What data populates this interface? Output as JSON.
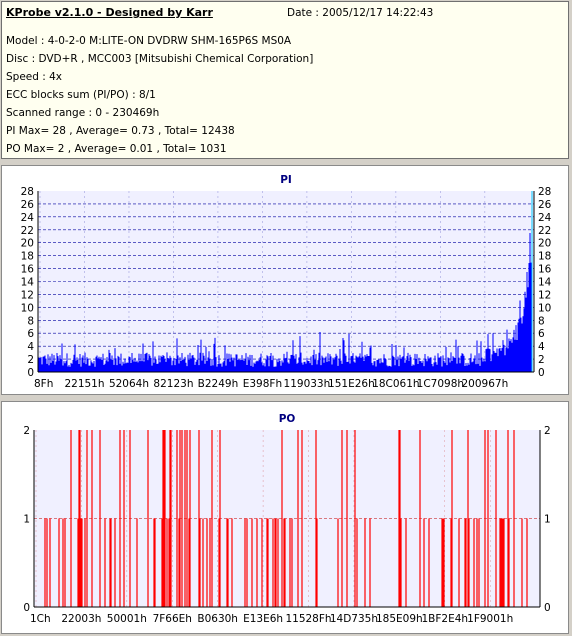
{
  "info": {
    "title": "KProbe v2.1.0 - Designed by Karr",
    "date": "Date : 2005/12/17 14:22:43",
    "model": "Model : 4-0-2-0 M:LITE-ON DVDRW SHM-165P6S MS0A",
    "disc": "Disc : DVD+R , MCC003 [Mitsubishi Chemical Corporation]",
    "speed": "Speed : 4x",
    "ecc": "ECC blocks sum (PI/PO) : 8/1",
    "range": "Scanned range : 0 - 230469h",
    "pi_stats": "PI Max= 28 , Average= 0.73 , Total= 12438",
    "po_stats": "PO Max= 2 , Average= 0.01 , Total= 1031"
  },
  "chart_data": [
    {
      "type": "bar",
      "title": "PI",
      "ylim": [
        0,
        28
      ],
      "y_ticks": [
        "0",
        "2",
        "4",
        "6",
        "8",
        "10",
        "12",
        "14",
        "16",
        "18",
        "20",
        "22",
        "24",
        "26",
        "28"
      ],
      "x_tick_labels": [
        "8Fh",
        "22151h",
        "52064h",
        "82123h",
        "B2249h",
        "E398Fh",
        "119033h",
        "151E26h",
        "18C061h",
        "1C7098h",
        "200967h"
      ],
      "grid": true,
      "colors": {
        "bars": "#0000ff",
        "grid": "#0000a0",
        "plot_bg": "#f0f0ff",
        "max_bar": "#00c8ff"
      },
      "series_description_values": {
        "typical_range": [
          1,
          5
        ],
        "max": 28,
        "average": 0.73
      }
    },
    {
      "type": "bar",
      "title": "PO",
      "ylim": [
        0,
        2
      ],
      "y_ticks": [
        "0",
        "1",
        "2"
      ],
      "x_tick_labels": [
        "1Ch",
        "22003h",
        "50001h",
        "7F66Eh",
        "B0630h",
        "E13E6h",
        "11528Fh",
        "14D735h",
        "185E09h",
        "1BF2E4h",
        "1F9001h"
      ],
      "grid": true,
      "colors": {
        "bars": "#ff0000",
        "grid": "#c00000",
        "plot_bg": "#f0f0ff"
      },
      "series_description_values": {
        "max": 2,
        "average": 0.01
      }
    }
  ]
}
